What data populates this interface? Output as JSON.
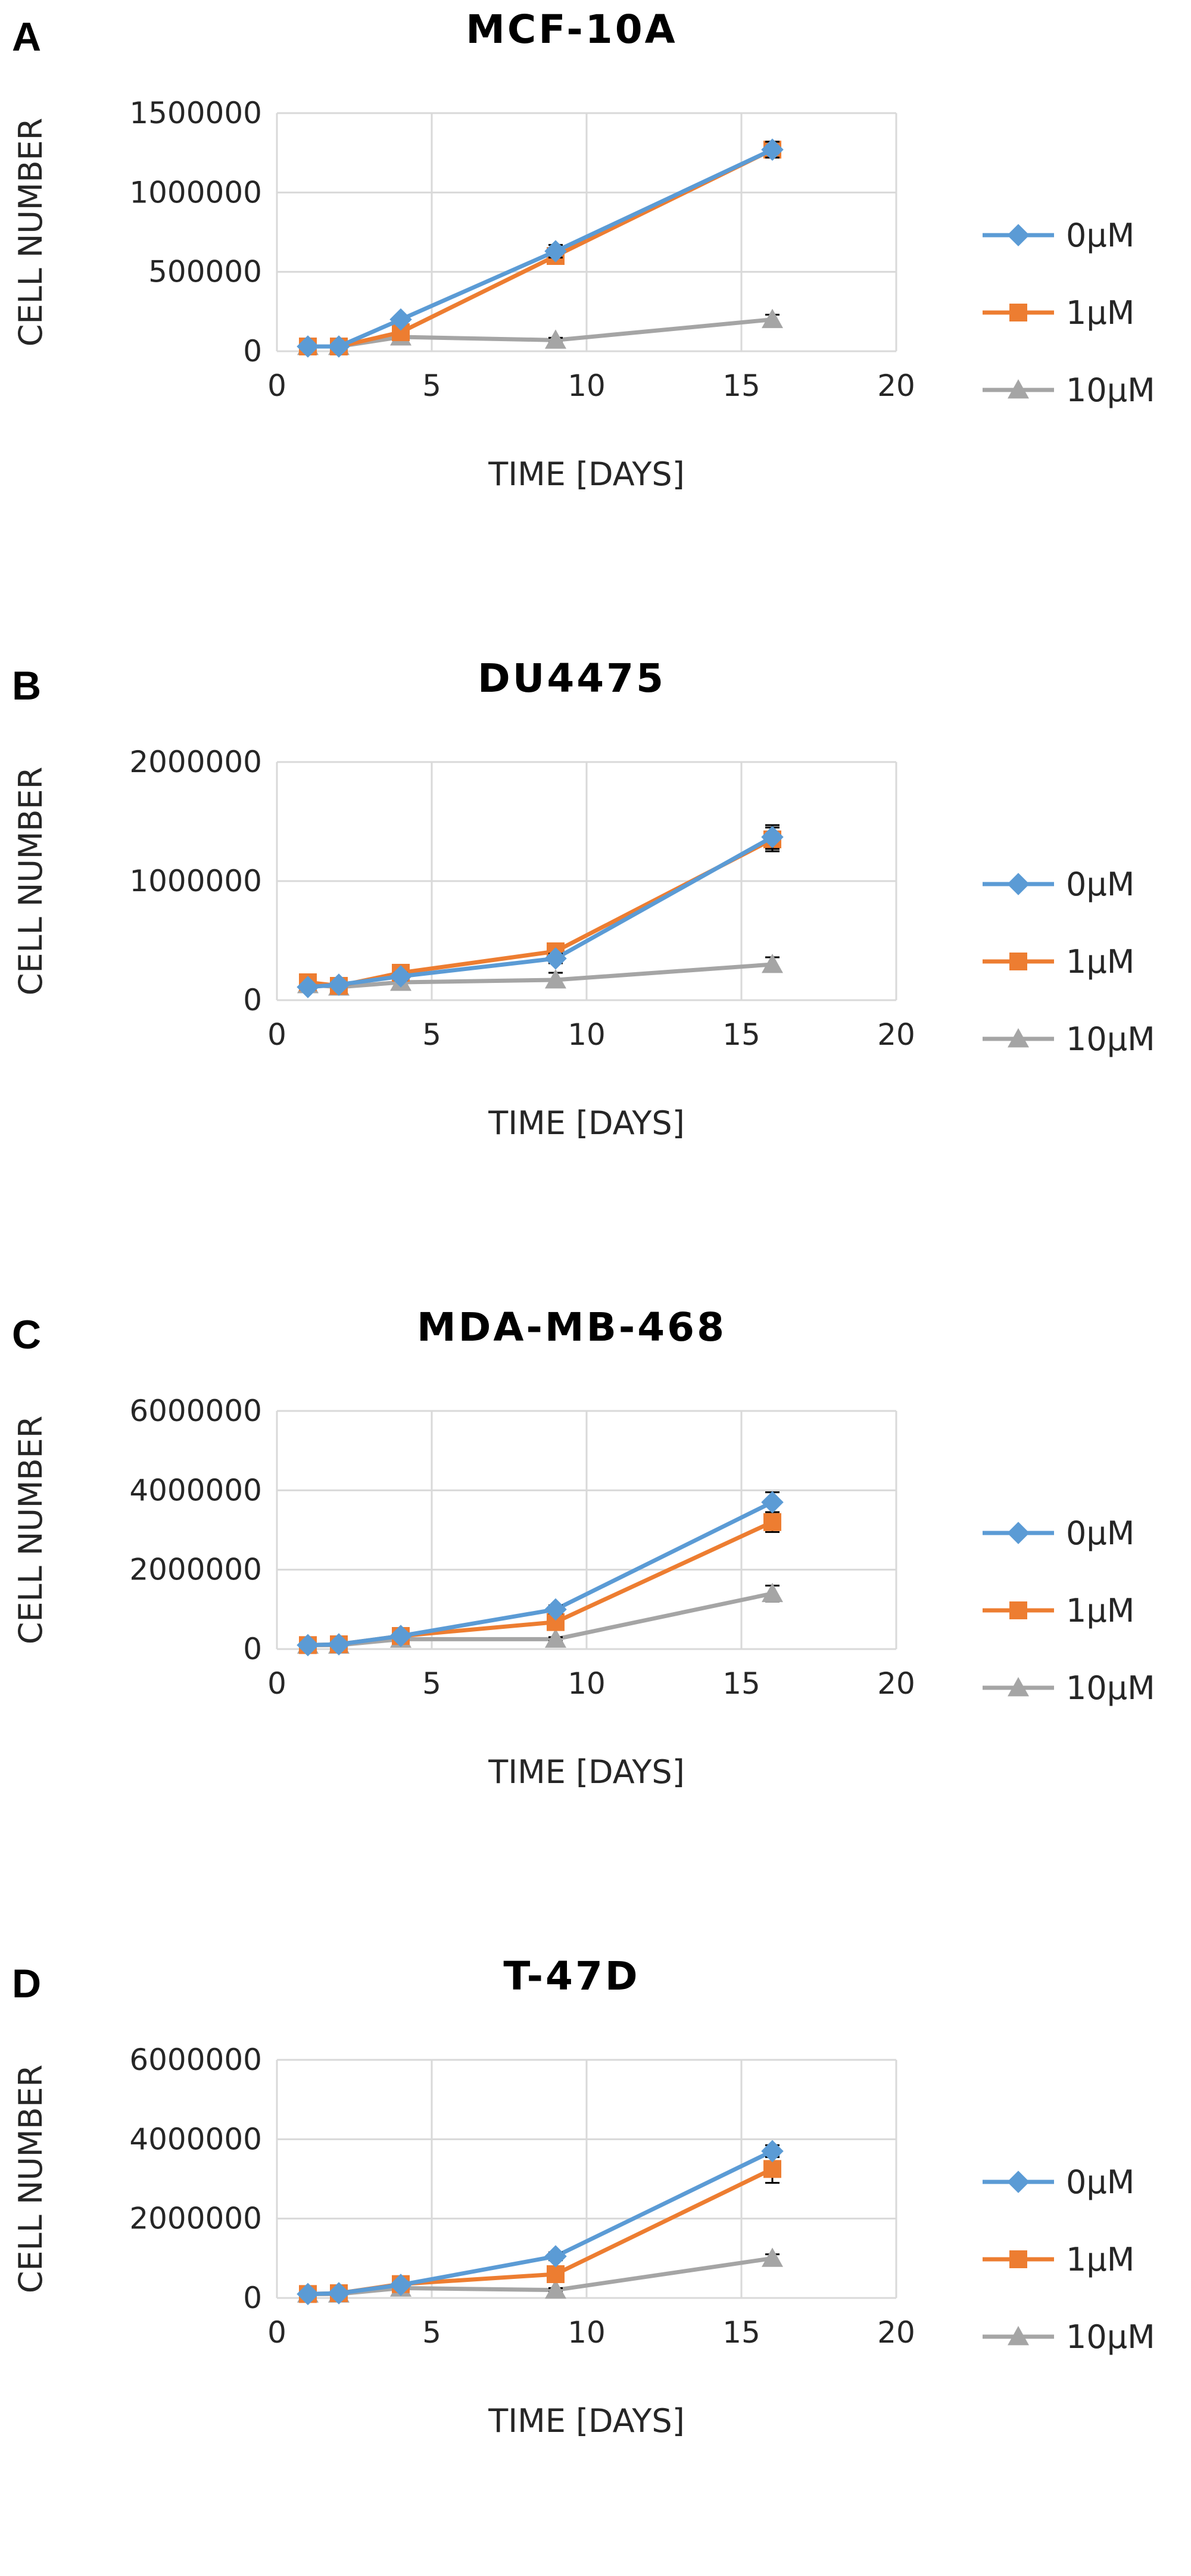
{
  "chart_data": [
    {
      "panel_letter": "A",
      "type": "line",
      "title": "MCF-10A",
      "xlabel": "TIME [DAYS]",
      "ylabel": "CELL NUMBER",
      "xlim": [
        0,
        20
      ],
      "ylim": [
        0,
        1500000
      ],
      "xticks": [
        0,
        5,
        10,
        15,
        20
      ],
      "yticks": [
        0,
        500000,
        1000000,
        1500000
      ],
      "ytick_labels": [
        "0",
        "500000",
        "1000000",
        "1500000"
      ],
      "grid": true,
      "legend_position": "right",
      "x": [
        1,
        2,
        4,
        9,
        16
      ],
      "series": [
        {
          "name": "0µM",
          "color": "#5b9bd5",
          "marker": "diamond",
          "values": [
            30000,
            30000,
            200000,
            630000,
            1270000
          ],
          "errors": [
            10000,
            10000,
            20000,
            40000,
            50000
          ]
        },
        {
          "name": "1µM",
          "color": "#ed7d31",
          "marker": "square",
          "values": [
            30000,
            30000,
            120000,
            600000,
            1270000
          ],
          "errors": [
            10000,
            10000,
            20000,
            40000,
            50000
          ]
        },
        {
          "name": "10µM",
          "color": "#a5a5a5",
          "marker": "triangle",
          "values": [
            30000,
            30000,
            90000,
            70000,
            200000
          ],
          "errors": [
            10000,
            10000,
            15000,
            15000,
            30000
          ]
        }
      ]
    },
    {
      "panel_letter": "B",
      "type": "line",
      "title": "DU4475",
      "xlabel": "TIME [DAYS]",
      "ylabel": "CELL NUMBER",
      "xlim": [
        0,
        20
      ],
      "ylim": [
        0,
        2000000
      ],
      "xticks": [
        0,
        5,
        10,
        15,
        20
      ],
      "yticks": [
        0,
        1000000,
        2000000
      ],
      "ytick_labels": [
        "0",
        "1000000",
        "2000000"
      ],
      "grid": true,
      "legend_position": "right",
      "x": [
        1,
        2,
        4,
        9,
        16
      ],
      "series": [
        {
          "name": "0µM",
          "color": "#5b9bd5",
          "marker": "diamond",
          "values": [
            110000,
            130000,
            200000,
            350000,
            1370000
          ],
          "errors": [
            20000,
            20000,
            30000,
            40000,
            100000
          ]
        },
        {
          "name": "1µM",
          "color": "#ed7d31",
          "marker": "square",
          "values": [
            150000,
            120000,
            230000,
            410000,
            1350000
          ],
          "errors": [
            20000,
            20000,
            30000,
            40000,
            100000
          ]
        },
        {
          "name": "10µM",
          "color": "#a5a5a5",
          "marker": "triangle",
          "values": [
            130000,
            110000,
            150000,
            170000,
            300000
          ],
          "errors": [
            20000,
            20000,
            30000,
            60000,
            60000
          ]
        }
      ]
    },
    {
      "panel_letter": "C",
      "type": "line",
      "title": "MDA-MB-468",
      "xlabel": "TIME [DAYS]",
      "ylabel": "CELL NUMBER",
      "xlim": [
        0,
        20
      ],
      "ylim": [
        0,
        6000000
      ],
      "xticks": [
        0,
        5,
        10,
        15,
        20
      ],
      "yticks": [
        0,
        2000000,
        4000000,
        6000000
      ],
      "ytick_labels": [
        "0",
        "2000000",
        "4000000",
        "6000000"
      ],
      "grid": true,
      "legend_position": "right",
      "x": [
        1,
        2,
        4,
        9,
        16
      ],
      "series": [
        {
          "name": "0µM",
          "color": "#5b9bd5",
          "marker": "diamond",
          "values": [
            100000,
            120000,
            330000,
            1000000,
            3700000
          ],
          "errors": [
            30000,
            30000,
            50000,
            100000,
            250000
          ]
        },
        {
          "name": "1µM",
          "color": "#ed7d31",
          "marker": "square",
          "values": [
            100000,
            120000,
            330000,
            680000,
            3200000
          ],
          "errors": [
            30000,
            30000,
            50000,
            100000,
            250000
          ]
        },
        {
          "name": "10µM",
          "color": "#a5a5a5",
          "marker": "triangle",
          "values": [
            100000,
            100000,
            250000,
            250000,
            1400000
          ],
          "errors": [
            30000,
            30000,
            50000,
            50000,
            200000
          ]
        }
      ]
    },
    {
      "panel_letter": "D",
      "type": "line",
      "title": "T-47D",
      "xlabel": "TIME [DAYS]",
      "ylabel": "CELL NUMBER",
      "xlim": [
        0,
        20
      ],
      "ylim": [
        0,
        6000000
      ],
      "xticks": [
        0,
        5,
        10,
        15,
        20
      ],
      "yticks": [
        0,
        2000000,
        4000000,
        6000000
      ],
      "ytick_labels": [
        "0",
        "2000000",
        "4000000",
        "6000000"
      ],
      "grid": true,
      "legend_position": "right",
      "x": [
        1,
        2,
        4,
        9,
        16
      ],
      "series": [
        {
          "name": "0µM",
          "color": "#5b9bd5",
          "marker": "diamond",
          "values": [
            100000,
            120000,
            330000,
            1050000,
            3700000
          ],
          "errors": [
            30000,
            30000,
            50000,
            100000,
            150000
          ]
        },
        {
          "name": "1µM",
          "color": "#ed7d31",
          "marker": "square",
          "values": [
            100000,
            120000,
            350000,
            600000,
            3250000
          ],
          "errors": [
            30000,
            30000,
            50000,
            100000,
            350000
          ]
        },
        {
          "name": "10µM",
          "color": "#a5a5a5",
          "marker": "triangle",
          "values": [
            100000,
            100000,
            250000,
            200000,
            1000000
          ],
          "errors": [
            30000,
            30000,
            50000,
            50000,
            100000
          ]
        }
      ]
    }
  ]
}
